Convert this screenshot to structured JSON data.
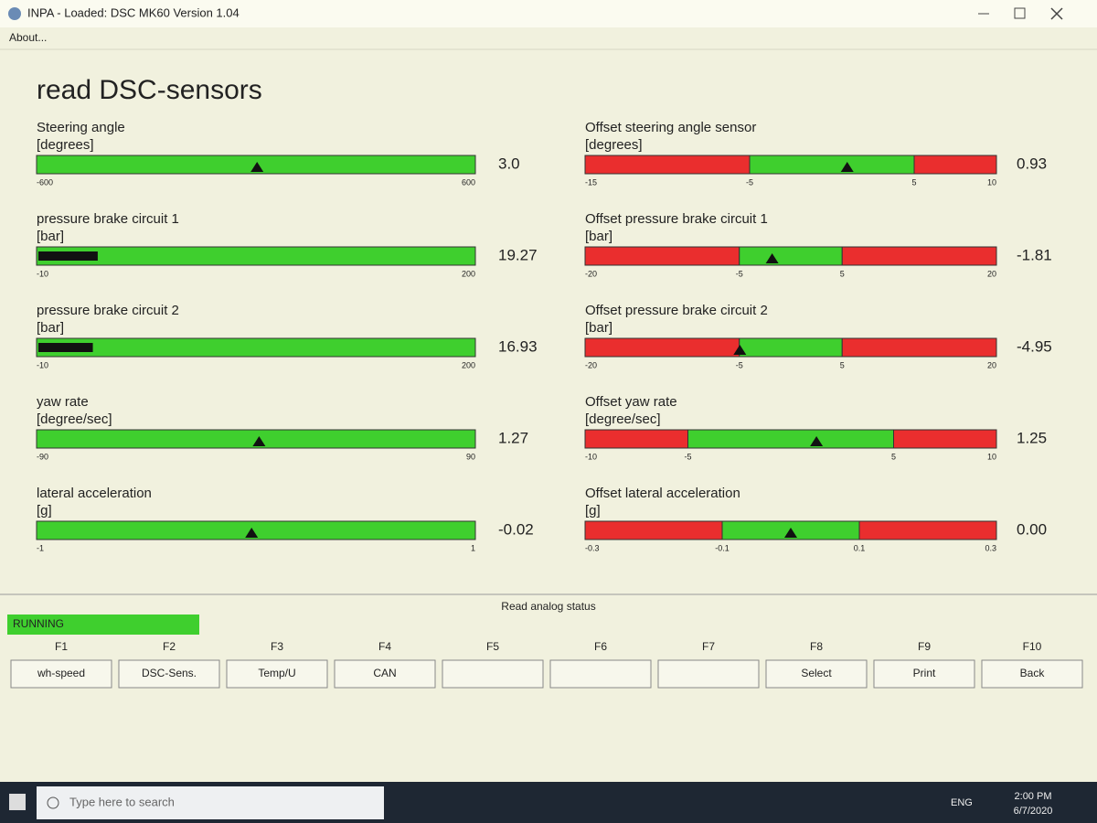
{
  "window": {
    "title": "INPA - Loaded: DSC MK60 Version 1.04",
    "menu": "About..."
  },
  "heading": "read DSC-sensors",
  "left_gauges": [
    {
      "label": "Steering angle",
      "unit": "[degrees]",
      "style": "marker",
      "range": [
        -600,
        600
      ],
      "value": 3,
      "value_label": "3.0"
    },
    {
      "label": "pressure brake circuit 1",
      "unit": "[bar]",
      "style": "bar",
      "range": [
        -10,
        200
      ],
      "value": 19.27
    },
    {
      "label": "pressure brake circuit 2",
      "unit": "[bar]",
      "style": "bar",
      "range": [
        -10,
        200
      ],
      "value": 16.93
    },
    {
      "label": "yaw rate",
      "unit": "[degree/sec]",
      "style": "marker",
      "range": [
        -90,
        90
      ],
      "value": 1.27
    },
    {
      "label": "lateral acceleration",
      "unit": "[g]",
      "style": "marker",
      "range": [
        -1,
        1
      ],
      "value": -0.02
    }
  ],
  "right_gauges": [
    {
      "label": "Offset steering angle sensor",
      "unit": "[degrees]",
      "ticks": [
        -15,
        -5,
        5,
        10
      ],
      "value": 0.93
    },
    {
      "label": "Offset pressure brake circuit 1",
      "unit": "[bar]",
      "ticks": [
        -20,
        -5,
        5,
        20
      ],
      "value": -1.81
    },
    {
      "label": "Offset pressure brake circuit 2",
      "unit": "[bar]",
      "ticks": [
        -20,
        -5,
        5,
        20
      ],
      "value": -4.95
    },
    {
      "label": "Offset yaw rate",
      "unit": "[degree/sec]",
      "ticks": [
        -10,
        -5,
        5,
        10
      ],
      "value": 1.25
    },
    {
      "label": "Offset lateral acceleration",
      "unit": "[g]",
      "ticks": [
        -0.3,
        -0.1,
        0.1,
        0.3
      ],
      "value": 0,
      "value_label": "0.00"
    }
  ],
  "status": "RUNNING",
  "status_title": "Read analog status",
  "function_keys": [
    {
      "key": "F1",
      "label": "wh-speed"
    },
    {
      "key": "F2",
      "label": "DSC-Sens."
    },
    {
      "key": "F3",
      "label": "Temp/U"
    },
    {
      "key": "F4",
      "label": "CAN"
    },
    {
      "key": "F5"
    },
    {
      "key": "F6"
    },
    {
      "key": "F7"
    },
    {
      "key": "F8",
      "label": "Select"
    },
    {
      "key": "F9",
      "label": "Print"
    },
    {
      "key": "F10",
      "label": "Back"
    }
  ],
  "taskbar": {
    "search": "Type here to search",
    "language": "ENG",
    "time": "2:00 PM",
    "date": "6/7/2020"
  }
}
